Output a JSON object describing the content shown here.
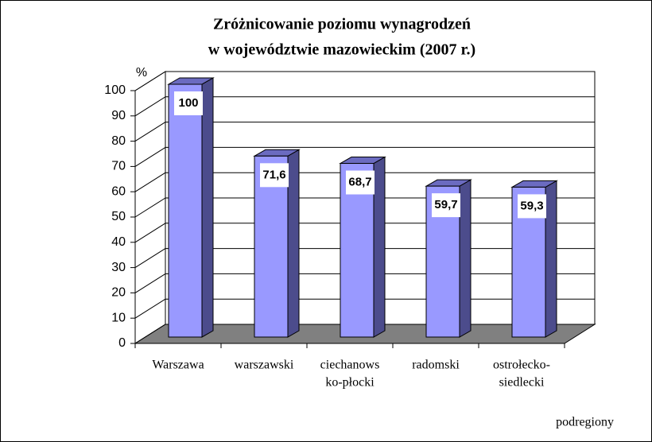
{
  "chart_data": {
    "type": "bar3d",
    "title": [
      "Zróżnicowanie poziomu wynagrodzeń",
      "w województwie mazowieckim (2007 r.)"
    ],
    "y_label": "%",
    "x_label": "podregiony",
    "categories": [
      [
        "Warszawa"
      ],
      [
        "warszawski"
      ],
      [
        "ciechanows",
        "ko-płocki"
      ],
      [
        "radomski"
      ],
      [
        "ostrołecko-",
        "siedlecki"
      ]
    ],
    "values": [
      100,
      71.6,
      68.7,
      59.7,
      59.3
    ],
    "value_labels": [
      "100",
      "71,6",
      "68,7",
      "59,7",
      "59,3"
    ],
    "color": "#9999ff",
    "ylim": [
      0,
      100
    ],
    "yticks": [
      0,
      10,
      20,
      30,
      40,
      50,
      60,
      70,
      80,
      90,
      100
    ],
    "grid": true
  }
}
